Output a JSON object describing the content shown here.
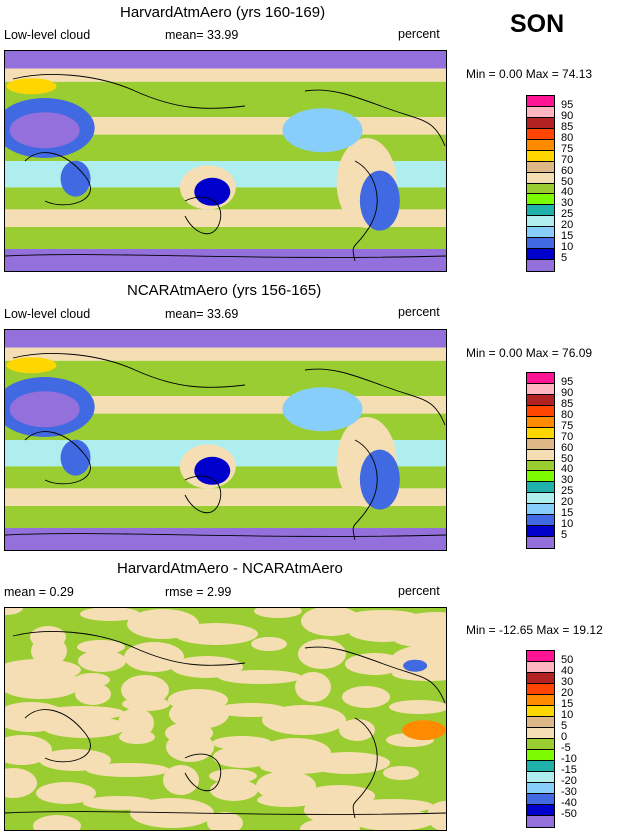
{
  "season": "SON",
  "panels": [
    {
      "title": "HarvardAtmAero (yrs 160-169)",
      "left": "Low-level cloud",
      "center": "mean=  33.99",
      "right": "percent",
      "minmax": "Min =   0.00 Max =  74.13",
      "levels": [
        "95",
        "90",
        "85",
        "80",
        "75",
        "70",
        "60",
        "50",
        "40",
        "30",
        "25",
        "20",
        "15",
        "10",
        "5"
      ],
      "colors": [
        "#ff1493",
        "#ffb6c1",
        "#b22222",
        "#ff4500",
        "#ff8c00",
        "#ffd700",
        "#deb887",
        "#f5deb3",
        "#9acd32",
        "#7cfc00",
        "#20b2aa",
        "#afeeee",
        "#87cefa",
        "#4169e1",
        "#0000cd",
        "#9370db"
      ]
    },
    {
      "title": "NCARAtmAero (yrs 156-165)",
      "left": "Low-level cloud",
      "center": "mean=  33.69",
      "right": "percent",
      "minmax": "Min =   0.00 Max =  76.09",
      "levels": [
        "95",
        "90",
        "85",
        "80",
        "75",
        "70",
        "60",
        "50",
        "40",
        "30",
        "25",
        "20",
        "15",
        "10",
        "5"
      ],
      "colors": [
        "#ff1493",
        "#ffb6c1",
        "#b22222",
        "#ff4500",
        "#ff8c00",
        "#ffd700",
        "#deb887",
        "#f5deb3",
        "#9acd32",
        "#7cfc00",
        "#20b2aa",
        "#afeeee",
        "#87cefa",
        "#4169e1",
        "#0000cd",
        "#9370db"
      ]
    },
    {
      "title": "HarvardAtmAero - NCARAtmAero",
      "left": "mean =   0.29",
      "center": "rmse =   2.99",
      "right": "percent",
      "minmax": "Min = -12.65 Max =  19.12",
      "levels": [
        "50",
        "40",
        "30",
        "20",
        "15",
        "10",
        "5",
        "0",
        "-5",
        "-10",
        "-15",
        "-20",
        "-30",
        "-40",
        "-50"
      ],
      "colors": [
        "#ff1493",
        "#ffb6c1",
        "#b22222",
        "#ff4500",
        "#ff8c00",
        "#ffd700",
        "#deb887",
        "#f5deb3",
        "#9acd32",
        "#7cfc00",
        "#20b2aa",
        "#afeeee",
        "#87cefa",
        "#4169e1",
        "#0000cd",
        "#9370db"
      ]
    }
  ]
}
